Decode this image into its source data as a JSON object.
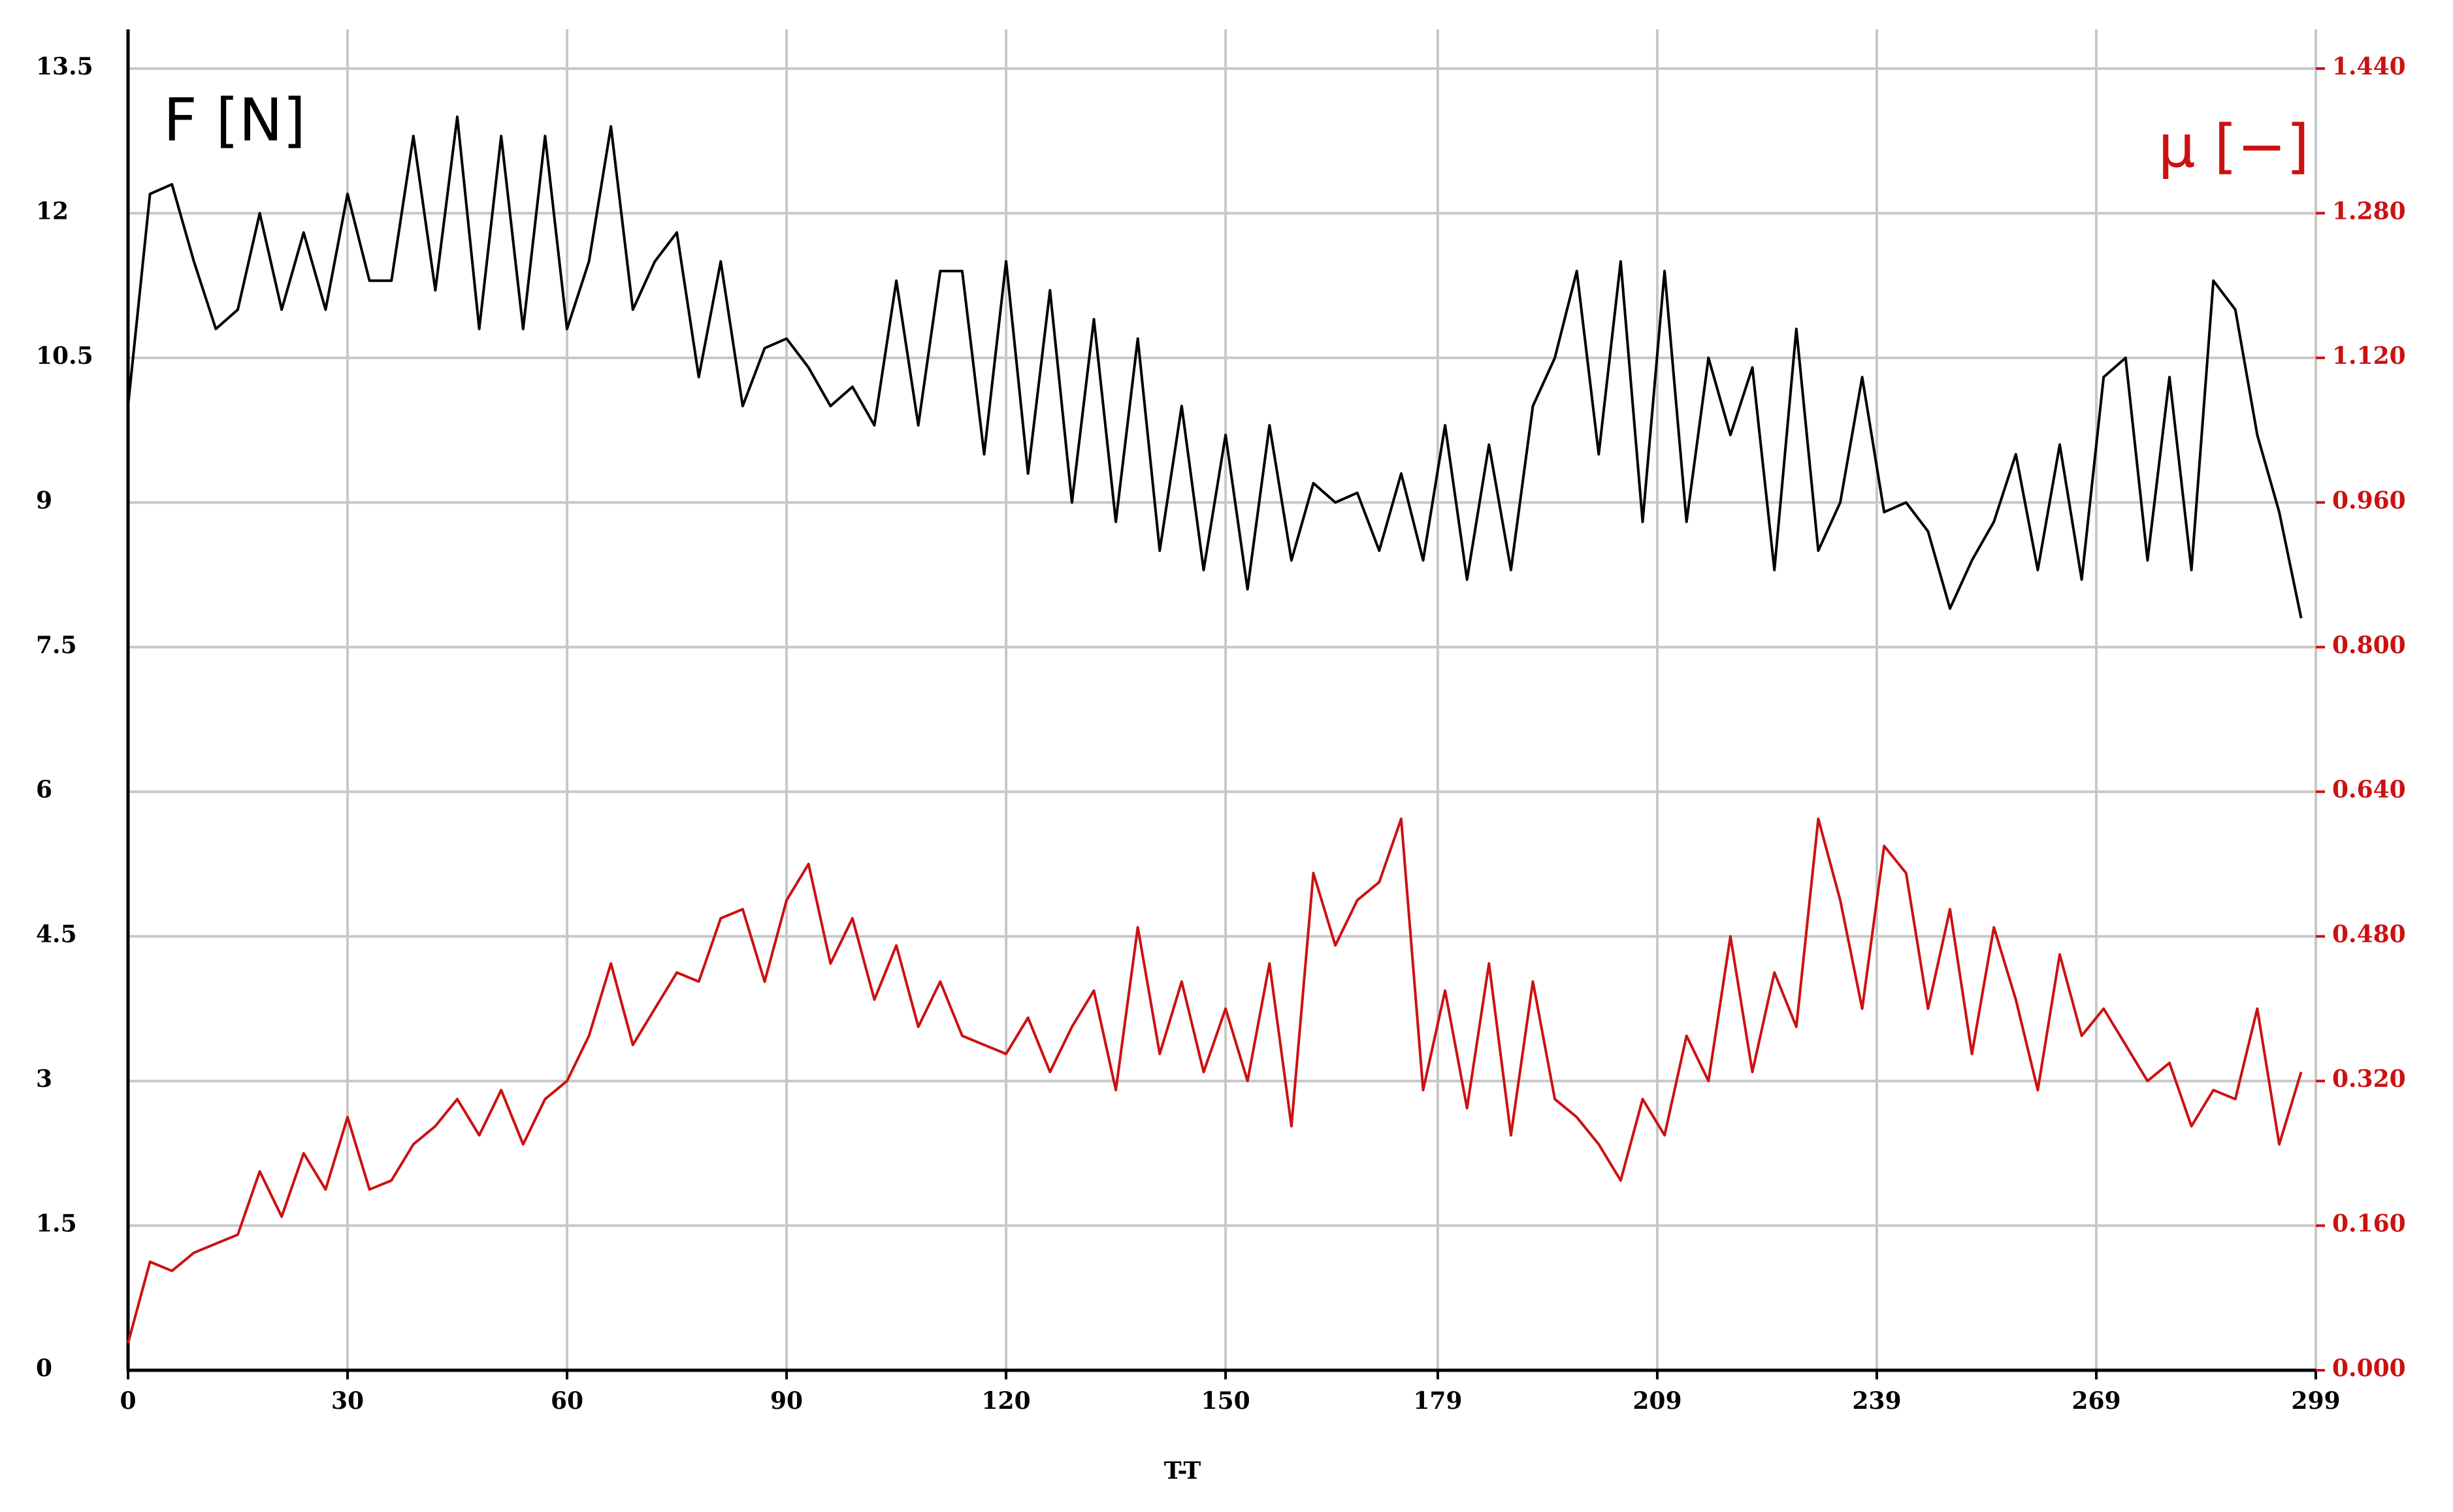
{
  "chart_data": {
    "type": "line",
    "y_axis_label": "F [N]",
    "y2_axis_label": "μ [−]",
    "x_axis_label": "T-T",
    "x": [
      0,
      3,
      6,
      9,
      12,
      15,
      18,
      21,
      24,
      27,
      30,
      33,
      36,
      39,
      42,
      45,
      48,
      51,
      54,
      57,
      60,
      63,
      66,
      69,
      72,
      75,
      78,
      81,
      84,
      87,
      90,
      93,
      96,
      99,
      102,
      105,
      108,
      111,
      114,
      117,
      120,
      123,
      126,
      129,
      132,
      135,
      138,
      141,
      144,
      147,
      150,
      153,
      156,
      159,
      162,
      165,
      168,
      171,
      174,
      177,
      180,
      183,
      186,
      189,
      192,
      195,
      198,
      201,
      204,
      207,
      210,
      213,
      216,
      219,
      222,
      225,
      228,
      231,
      234,
      237,
      240,
      243,
      246,
      249,
      252,
      255,
      258,
      261,
      264,
      267,
      270,
      273,
      276,
      279,
      282,
      285,
      288,
      291,
      294,
      297
    ],
    "series": [
      {
        "color": "#000000",
        "axis": "y",
        "values": [
          10.0,
          12.2,
          12.3,
          11.5,
          10.8,
          11.0,
          12.0,
          11.0,
          11.8,
          11.0,
          12.2,
          11.3,
          11.3,
          12.8,
          11.2,
          13.0,
          10.8,
          12.8,
          10.8,
          12.8,
          10.8,
          11.5,
          12.9,
          11.0,
          11.5,
          11.8,
          10.3,
          11.5,
          10.0,
          10.6,
          10.7,
          10.4,
          10.0,
          10.2,
          9.8,
          11.3,
          9.8,
          11.4,
          11.4,
          9.5,
          11.5,
          9.3,
          11.2,
          9.0,
          10.9,
          8.8,
          10.7,
          8.5,
          10.0,
          8.3,
          9.7,
          8.1,
          9.8,
          8.4,
          9.2,
          9.0,
          9.1,
          8.5,
          9.3,
          8.4,
          9.8,
          8.2,
          9.6,
          8.3,
          10.0,
          10.5,
          11.4,
          9.5,
          11.5,
          8.8,
          11.4,
          8.8,
          10.5,
          9.7,
          10.4,
          8.3,
          10.8,
          8.5,
          9.0,
          10.3,
          8.9,
          9.0,
          8.7,
          7.9,
          8.4,
          8.8,
          9.5,
          8.3,
          9.6,
          8.2,
          10.3,
          10.5,
          8.4,
          10.3,
          8.3,
          11.3,
          11.0,
          9.7,
          8.9,
          7.8
        ]
      },
      {
        "color": "#cc1111",
        "axis": "y2",
        "values": [
          0.03,
          0.12,
          0.11,
          0.13,
          0.14,
          0.15,
          0.22,
          0.17,
          0.24,
          0.2,
          0.28,
          0.2,
          0.21,
          0.25,
          0.27,
          0.3,
          0.26,
          0.31,
          0.25,
          0.3,
          0.32,
          0.37,
          0.45,
          0.36,
          0.4,
          0.44,
          0.43,
          0.5,
          0.51,
          0.43,
          0.52,
          0.56,
          0.45,
          0.5,
          0.41,
          0.47,
          0.38,
          0.43,
          0.37,
          0.36,
          0.35,
          0.39,
          0.33,
          0.38,
          0.42,
          0.31,
          0.49,
          0.35,
          0.43,
          0.33,
          0.4,
          0.32,
          0.45,
          0.27,
          0.55,
          0.47,
          0.52,
          0.54,
          0.61,
          0.31,
          0.42,
          0.29,
          0.45,
          0.26,
          0.43,
          0.3,
          0.28,
          0.25,
          0.21,
          0.3,
          0.26,
          0.37,
          0.32,
          0.48,
          0.33,
          0.44,
          0.38,
          0.61,
          0.52,
          0.4,
          0.58,
          0.55,
          0.4,
          0.51,
          0.35,
          0.49,
          0.41,
          0.31,
          0.46,
          0.37,
          0.4,
          0.36,
          0.32,
          0.34,
          0.27,
          0.31,
          0.3,
          0.4,
          0.25,
          0.33
        ]
      }
    ],
    "xlim": [
      0,
      299
    ],
    "xticks": [
      0,
      30,
      60,
      90,
      120,
      150,
      179,
      209,
      239,
      269,
      299
    ],
    "ylim": [
      0,
      13.5
    ],
    "yticks": [
      0,
      1.5,
      3,
      4.5,
      6,
      7.5,
      9,
      10.5,
      12,
      13.5
    ],
    "y2lim": [
      0,
      1.44
    ],
    "y2ticks": [
      {
        "value": 0,
        "label": "0.000"
      },
      {
        "value": 0.16,
        "label": "0.160"
      },
      {
        "value": 0.32,
        "label": "0.320"
      },
      {
        "value": 0.48,
        "label": "0.480"
      },
      {
        "value": 0.64,
        "label": "0.640"
      },
      {
        "value": 0.8,
        "label": "0.800"
      },
      {
        "value": 0.96,
        "label": "0.960"
      },
      {
        "value": 1.12,
        "label": "1.120"
      },
      {
        "value": 1.28,
        "label": "1.280"
      },
      {
        "value": 1.44,
        "label": "1.440"
      }
    ],
    "grid": true,
    "y2_color": "#cc1111"
  }
}
